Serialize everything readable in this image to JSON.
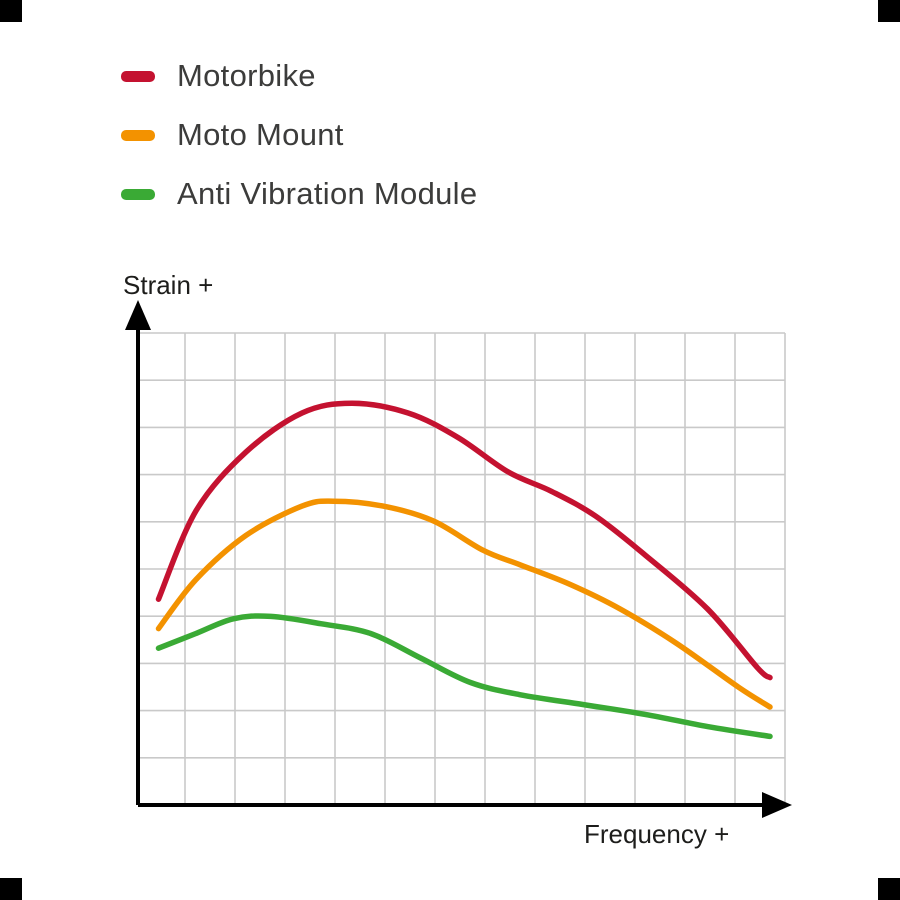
{
  "figure": {
    "background": "#ffffff",
    "corner_mark_color": "#000000"
  },
  "axes": {
    "axis_color": "#000000",
    "grid_color": "#c9c9c9"
  },
  "chart_data": {
    "type": "line",
    "title": "",
    "xlabel": "Frequency +",
    "ylabel": "Strain +",
    "xlim": [
      0,
      100
    ],
    "ylim": [
      0,
      10
    ],
    "grid": true,
    "legend_position": "top-left",
    "series": [
      {
        "name": "Motorbike",
        "color": "#c41230",
        "points": [
          [
            2,
            4.2
          ],
          [
            8,
            6.0
          ],
          [
            16,
            7.2
          ],
          [
            25,
            8.0
          ],
          [
            33,
            8.2
          ],
          [
            42,
            8.0
          ],
          [
            50,
            7.5
          ],
          [
            58,
            6.8
          ],
          [
            65,
            6.4
          ],
          [
            72,
            5.9
          ],
          [
            80,
            5.1
          ],
          [
            90,
            4.0
          ],
          [
            98,
            2.8
          ],
          [
            100,
            2.6
          ]
        ]
      },
      {
        "name": "Moto Mount",
        "color": "#f39200",
        "points": [
          [
            2,
            3.6
          ],
          [
            8,
            4.6
          ],
          [
            16,
            5.5
          ],
          [
            25,
            6.1
          ],
          [
            30,
            6.2
          ],
          [
            38,
            6.1
          ],
          [
            46,
            5.8
          ],
          [
            54,
            5.2
          ],
          [
            60,
            4.9
          ],
          [
            68,
            4.5
          ],
          [
            76,
            4.0
          ],
          [
            85,
            3.3
          ],
          [
            95,
            2.4
          ],
          [
            100,
            2.0
          ]
        ]
      },
      {
        "name": "Anti Vibration Module",
        "color": "#3aaa35",
        "points": [
          [
            2,
            3.2
          ],
          [
            8,
            3.5
          ],
          [
            14,
            3.8
          ],
          [
            20,
            3.85
          ],
          [
            28,
            3.7
          ],
          [
            36,
            3.5
          ],
          [
            44,
            3.0
          ],
          [
            52,
            2.5
          ],
          [
            60,
            2.25
          ],
          [
            70,
            2.05
          ],
          [
            80,
            1.85
          ],
          [
            90,
            1.6
          ],
          [
            100,
            1.4
          ]
        ]
      }
    ]
  }
}
